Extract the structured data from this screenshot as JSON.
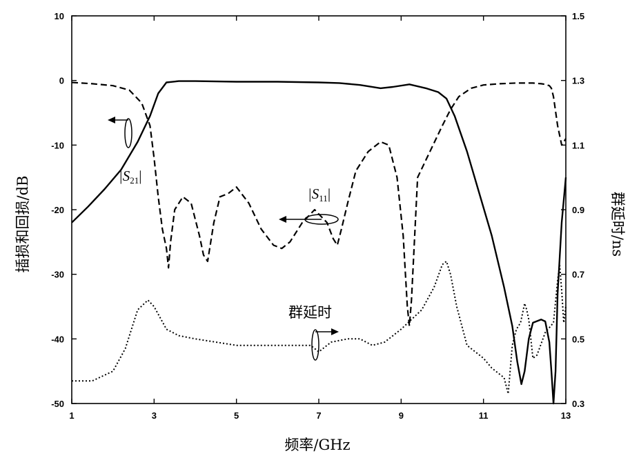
{
  "chart_data": {
    "type": "line",
    "xlabel": "频率/GHz",
    "ylabel": "插损和回损/dB",
    "y2label": "群延时/ns",
    "xlim": [
      1,
      13
    ],
    "ylim": [
      -50,
      10
    ],
    "y2lim": [
      0.3,
      1.5
    ],
    "xticks": [
      1,
      3,
      5,
      7,
      9,
      11,
      13
    ],
    "yticks": [
      10,
      0,
      -10,
      -20,
      -30,
      -40,
      -50
    ],
    "y2ticks": [
      "1.5",
      "1.3",
      "1.1",
      "0.9",
      "0.7",
      "0.5",
      "0.3"
    ],
    "grid": false,
    "legend": "none",
    "annotations": {
      "s21": {
        "prefix": "|S",
        "sub": "21",
        "suffix": "|"
      },
      "s11": {
        "prefix": "|S",
        "sub": "11",
        "suffix": "|"
      },
      "group_delay": "群延时"
    },
    "series": [
      {
        "axis": "left",
        "style": "solid",
        "x": [
          1.0,
          1.4,
          1.8,
          2.2,
          2.6,
          2.9,
          3.1,
          3.3,
          3.6,
          4.0,
          5.0,
          6.0,
          7.0,
          7.5,
          8.0,
          8.5,
          8.8,
          9.2,
          9.6,
          9.9,
          10.1,
          10.3,
          10.6,
          10.9,
          11.2,
          11.5,
          11.7,
          11.82,
          11.92,
          12.0,
          12.1,
          12.2,
          12.4,
          12.5,
          12.6,
          12.65,
          12.7,
          12.75,
          12.8,
          12.9,
          13.0
        ],
        "y": [
          -22,
          -19.5,
          -16.8,
          -13.8,
          -9.5,
          -5.5,
          -2,
          -0.3,
          -0.1,
          -0.1,
          -0.2,
          -0.2,
          -0.3,
          -0.4,
          -0.7,
          -1.2,
          -1.0,
          -0.6,
          -1.2,
          -1.8,
          -2.8,
          -5.5,
          -11,
          -17.5,
          -24,
          -32,
          -38,
          -43.5,
          -47,
          -45,
          -40,
          -37.5,
          -37,
          -37.3,
          -40.5,
          -45,
          -50,
          -45,
          -33,
          -22,
          -15
        ]
      },
      {
        "axis": "left",
        "style": "dashed",
        "x": [
          1.0,
          1.5,
          2.0,
          2.4,
          2.7,
          2.9,
          3.0,
          3.1,
          3.2,
          3.3,
          3.35,
          3.4,
          3.5,
          3.7,
          3.9,
          4.1,
          4.2,
          4.3,
          4.35,
          4.45,
          4.6,
          4.8,
          5.0,
          5.3,
          5.6,
          5.9,
          6.1,
          6.3,
          6.6,
          6.9,
          7.2,
          7.35,
          7.45,
          7.55,
          7.7,
          7.9,
          8.2,
          8.5,
          8.7,
          8.9,
          9.05,
          9.15,
          9.2,
          9.25,
          9.4,
          9.7,
          10.0,
          10.2,
          10.4,
          10.7,
          11.0,
          11.4,
          11.8,
          12.2,
          12.4,
          12.5,
          12.6,
          12.65,
          12.7,
          12.8,
          12.9,
          13.0
        ],
        "y": [
          -0.3,
          -0.5,
          -0.8,
          -1.5,
          -3.5,
          -7,
          -12,
          -18,
          -23,
          -26,
          -29,
          -25,
          -20,
          -18,
          -19,
          -24,
          -27,
          -28,
          -26,
          -22,
          -18,
          -17.5,
          -16.5,
          -19,
          -23,
          -25.5,
          -26,
          -25,
          -22,
          -20,
          -22,
          -24.5,
          -25.5,
          -23,
          -19,
          -14,
          -11,
          -9.5,
          -10,
          -15,
          -24,
          -35,
          -38,
          -34,
          -15,
          -11,
          -7,
          -4.5,
          -2.5,
          -1.2,
          -0.7,
          -0.5,
          -0.4,
          -0.4,
          -0.5,
          -0.6,
          -0.8,
          -1.2,
          -2.5,
          -7,
          -10,
          -9
        ]
      },
      {
        "axis": "right",
        "style": "dotted",
        "x": [
          1.0,
          1.5,
          2.0,
          2.3,
          2.6,
          2.85,
          3.0,
          3.3,
          3.6,
          4.0,
          5.0,
          6.0,
          6.8,
          7.0,
          7.3,
          7.7,
          8.0,
          8.3,
          8.6,
          9.0,
          9.5,
          9.8,
          10.0,
          10.1,
          10.2,
          10.35,
          10.6,
          11.0,
          11.2,
          11.4,
          11.5,
          11.6,
          11.7,
          11.8,
          11.9,
          12.0,
          12.05,
          12.1,
          12.2,
          12.3,
          12.5,
          12.7,
          12.8,
          12.85,
          12.9,
          12.95,
          13.0
        ],
        "y": [
          0.37,
          0.37,
          0.4,
          0.47,
          0.59,
          0.62,
          0.6,
          0.53,
          0.51,
          0.5,
          0.48,
          0.48,
          0.48,
          0.46,
          0.49,
          0.5,
          0.5,
          0.48,
          0.49,
          0.53,
          0.59,
          0.66,
          0.73,
          0.74,
          0.7,
          0.6,
          0.48,
          0.44,
          0.41,
          0.39,
          0.38,
          0.33,
          0.48,
          0.53,
          0.55,
          0.61,
          0.59,
          0.56,
          0.44,
          0.45,
          0.52,
          0.55,
          0.68,
          0.73,
          0.65,
          0.55,
          0.6
        ]
      }
    ]
  }
}
